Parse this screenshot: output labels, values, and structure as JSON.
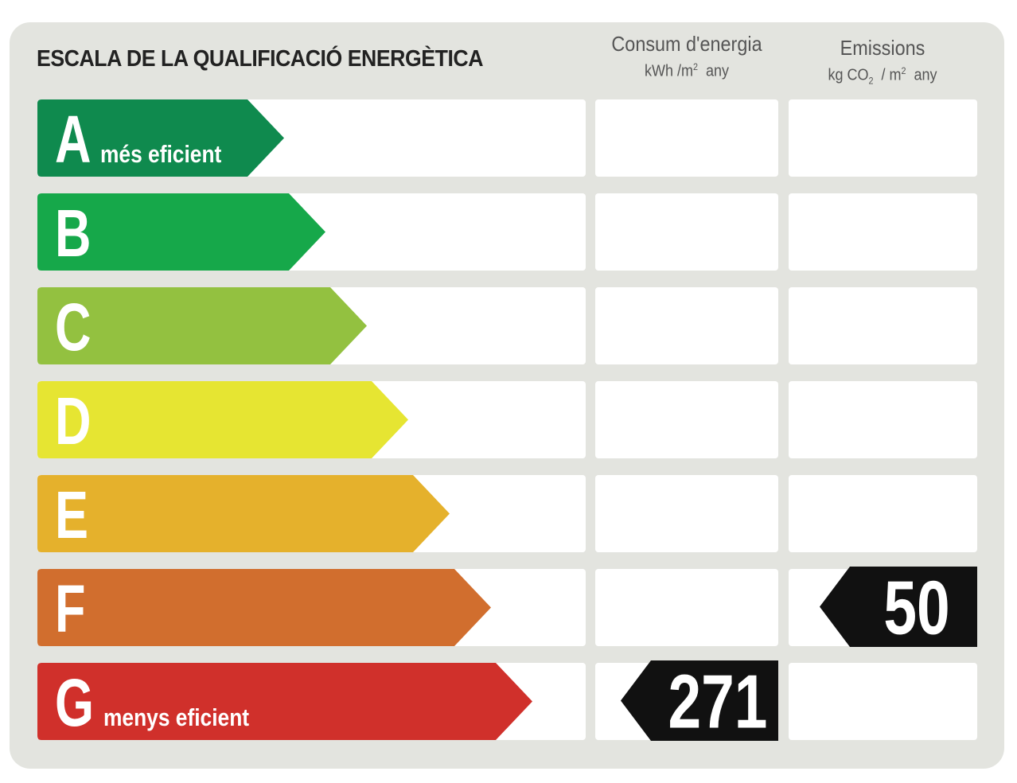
{
  "title": "ESCALA DE LA QUALIFICACIÓ ENERGÈTICA",
  "columns": {
    "consum": {
      "label": "Consum d'energia",
      "unit_prefix": "kWh /m",
      "unit_sup": "2",
      "unit_suffix": "any"
    },
    "emissions": {
      "label": "Emissions",
      "unit_prefix": "kg CO",
      "unit_sub": "2",
      "unit_mid": "/ m",
      "unit_sup": "2",
      "unit_suffix": "any"
    }
  },
  "classes": [
    {
      "letter": "A",
      "description": "més eficient",
      "color": "#0f8a4e"
    },
    {
      "letter": "B",
      "description": "",
      "color": "#16a84a"
    },
    {
      "letter": "C",
      "description": "",
      "color": "#93c140"
    },
    {
      "letter": "D",
      "description": "",
      "color": "#e6e532"
    },
    {
      "letter": "E",
      "description": "",
      "color": "#e5b12c"
    },
    {
      "letter": "F",
      "description": "",
      "color": "#d16e2e"
    },
    {
      "letter": "G",
      "description": "menys eficient",
      "color": "#d0302b"
    }
  ],
  "ratings": {
    "consum": {
      "class": "G",
      "value": "271"
    },
    "emissions": {
      "class": "F",
      "value": "50"
    }
  },
  "marker_color": "#111111"
}
